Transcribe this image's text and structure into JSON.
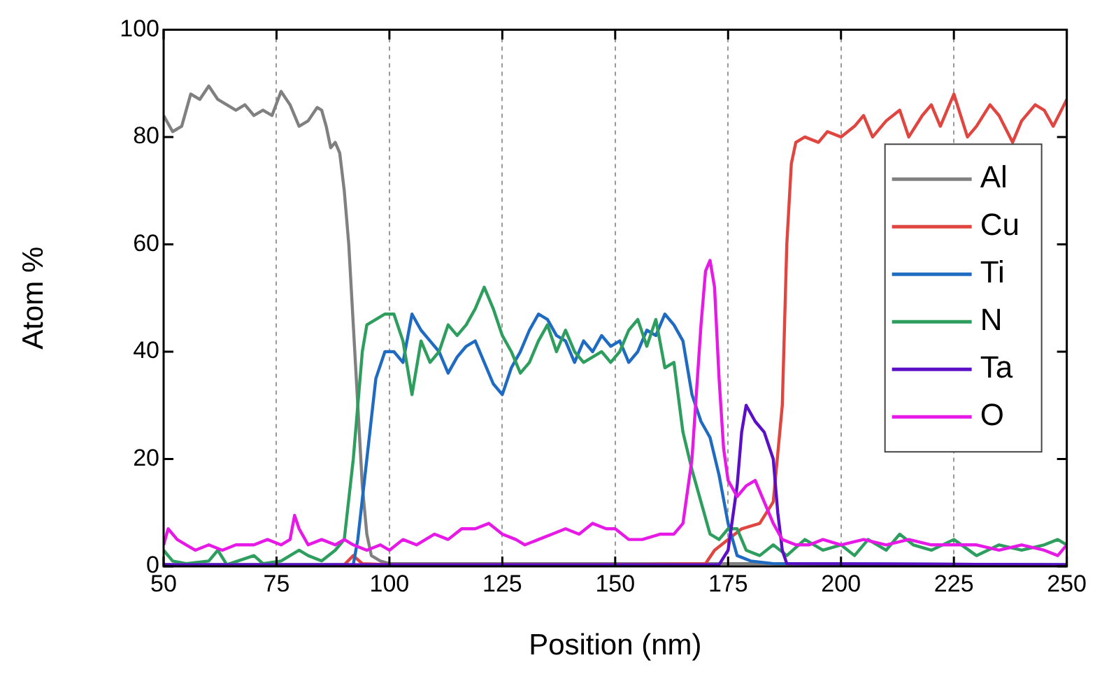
{
  "chart_data": {
    "type": "line",
    "xlabel": "Position (nm)",
    "ylabel": "Atom %",
    "xlim": [
      50,
      250
    ],
    "xticks": [
      50,
      75,
      100,
      125,
      150,
      175,
      200,
      225,
      250
    ],
    "ylim": [
      0,
      100
    ],
    "yticks": [
      0,
      20,
      40,
      60,
      80,
      100
    ],
    "grid": "x",
    "legend": "right",
    "marker": "none",
    "line_style": "solid",
    "series": [
      {
        "name": "Al",
        "color": "#808080",
        "x": [
          50,
          52,
          54,
          56,
          58,
          60,
          62,
          64,
          66,
          68,
          70,
          72,
          74,
          76,
          78,
          80,
          82,
          84,
          85,
          86,
          87,
          88,
          89,
          90,
          91,
          92,
          93,
          94,
          95,
          96,
          98,
          100,
          110,
          130,
          150,
          170,
          190,
          250
        ],
        "values": [
          84,
          81,
          82,
          88,
          87,
          89.5,
          87,
          86,
          85,
          86,
          84,
          85,
          84,
          88.5,
          86,
          82,
          83,
          85.5,
          85,
          82,
          78,
          79,
          77,
          70,
          60,
          45,
          30,
          15,
          6,
          2,
          1,
          0.5,
          0.5,
          0.5,
          0.5,
          0.5,
          0.5,
          0.3
        ]
      },
      {
        "name": "Cu",
        "color": "#e0453f",
        "x": [
          50,
          90,
          92,
          94,
          100,
          150,
          170,
          172,
          178,
          182,
          185,
          187,
          188,
          189,
          190,
          192,
          195,
          197,
          200,
          203,
          205,
          207,
          210,
          213,
          215,
          218,
          220,
          222,
          225,
          228,
          230,
          233,
          235,
          238,
          240,
          243,
          245,
          247,
          250
        ],
        "values": [
          0.3,
          0.3,
          2,
          0.5,
          0.3,
          0.3,
          0.5,
          3,
          7,
          8,
          12,
          30,
          60,
          75,
          79,
          80,
          79,
          81,
          80,
          82,
          84,
          80,
          83,
          85,
          80,
          84,
          86,
          82,
          88,
          80,
          82,
          86,
          84,
          79,
          83,
          86,
          85,
          82,
          87
        ]
      },
      {
        "name": "Ti",
        "color": "#1f6bc1",
        "x": [
          50,
          92,
          93,
          95,
          97,
          99,
          101,
          103,
          105,
          107,
          109,
          111,
          113,
          115,
          117,
          119,
          121,
          123,
          125,
          127,
          129,
          131,
          133,
          135,
          137,
          139,
          141,
          143,
          145,
          147,
          149,
          151,
          153,
          155,
          157,
          159,
          161,
          163,
          165,
          167,
          169,
          171,
          173,
          175,
          177,
          180,
          185,
          250
        ],
        "values": [
          0.3,
          0.3,
          5,
          20,
          35,
          40,
          40,
          38,
          47,
          44,
          42,
          40,
          36,
          39,
          41,
          42,
          38,
          34,
          32,
          37,
          40,
          44,
          47,
          46,
          43,
          42,
          38,
          42,
          40,
          43,
          41,
          42,
          38,
          40,
          44,
          43,
          47,
          45,
          42,
          32,
          27,
          24,
          17,
          8,
          2,
          1,
          0.5,
          0.3
        ]
      },
      {
        "name": "N",
        "color": "#2e9e5e",
        "x": [
          50,
          52,
          55,
          60,
          62,
          64,
          70,
          72,
          76,
          80,
          82,
          85,
          88,
          90,
          92,
          94,
          95,
          97,
          99,
          101,
          103,
          105,
          107,
          109,
          111,
          113,
          115,
          117,
          119,
          121,
          123,
          125,
          127,
          129,
          131,
          133,
          135,
          137,
          139,
          141,
          143,
          145,
          147,
          149,
          151,
          153,
          155,
          157,
          159,
          161,
          163,
          165,
          167,
          169,
          171,
          173,
          175,
          177,
          179,
          182,
          185,
          188,
          192,
          196,
          200,
          203,
          206,
          210,
          213,
          216,
          220,
          225,
          230,
          235,
          240,
          245,
          248,
          250
        ],
        "values": [
          3,
          1,
          0.5,
          1,
          3,
          0.3,
          2,
          0.5,
          1,
          3,
          2,
          1,
          3,
          5,
          20,
          40,
          45,
          46,
          47,
          47,
          42,
          32,
          42,
          38,
          40,
          45,
          43,
          45,
          48,
          52,
          48,
          43,
          40,
          36,
          38,
          42,
          45,
          40,
          44,
          40,
          38,
          39,
          40,
          38,
          40,
          44,
          46,
          41,
          46,
          37,
          38,
          25,
          18,
          12,
          6,
          5,
          7,
          7,
          3,
          2,
          4,
          2,
          5,
          3,
          4,
          2,
          5,
          3,
          6,
          4,
          3,
          5,
          2,
          4,
          3,
          4,
          5,
          4
        ]
      },
      {
        "name": "Ta",
        "color": "#5b0fc7",
        "x": [
          50,
          173,
          175,
          177,
          178,
          179,
          181,
          183,
          185,
          186,
          187,
          188,
          250
        ],
        "values": [
          0.3,
          0.3,
          3,
          15,
          25,
          30,
          27,
          25,
          20,
          10,
          3,
          0.5,
          0.3
        ]
      },
      {
        "name": "O",
        "color": "#e619e6",
        "x": [
          50,
          51,
          53,
          55,
          57,
          60,
          63,
          66,
          70,
          73,
          76,
          78,
          79,
          80,
          82,
          85,
          88,
          90,
          92,
          95,
          98,
          100,
          103,
          106,
          110,
          113,
          116,
          119,
          122,
          125,
          128,
          130,
          133,
          136,
          139,
          142,
          145,
          148,
          150,
          153,
          156,
          160,
          163,
          165,
          167,
          169,
          170,
          171,
          172,
          173,
          174,
          175,
          177,
          179,
          181,
          183,
          185,
          187,
          190,
          193,
          196,
          200,
          205,
          210,
          215,
          220,
          225,
          230,
          235,
          240,
          245,
          248,
          250
        ],
        "values": [
          4,
          7,
          5,
          4,
          3,
          4,
          3,
          4,
          4,
          5,
          4,
          5,
          9.5,
          7,
          4,
          5,
          4,
          5,
          4,
          3,
          4,
          3,
          5,
          4,
          6,
          5,
          7,
          7,
          8,
          6,
          5,
          4,
          5,
          6,
          7,
          6,
          8,
          7,
          7,
          5,
          5,
          6,
          6,
          8,
          20,
          45,
          55,
          57,
          52,
          35,
          22,
          16,
          13,
          15,
          16,
          12,
          8,
          5,
          4,
          4,
          5,
          4,
          5,
          4,
          5,
          4,
          4,
          4,
          3,
          4,
          3,
          2,
          4
        ]
      }
    ]
  }
}
